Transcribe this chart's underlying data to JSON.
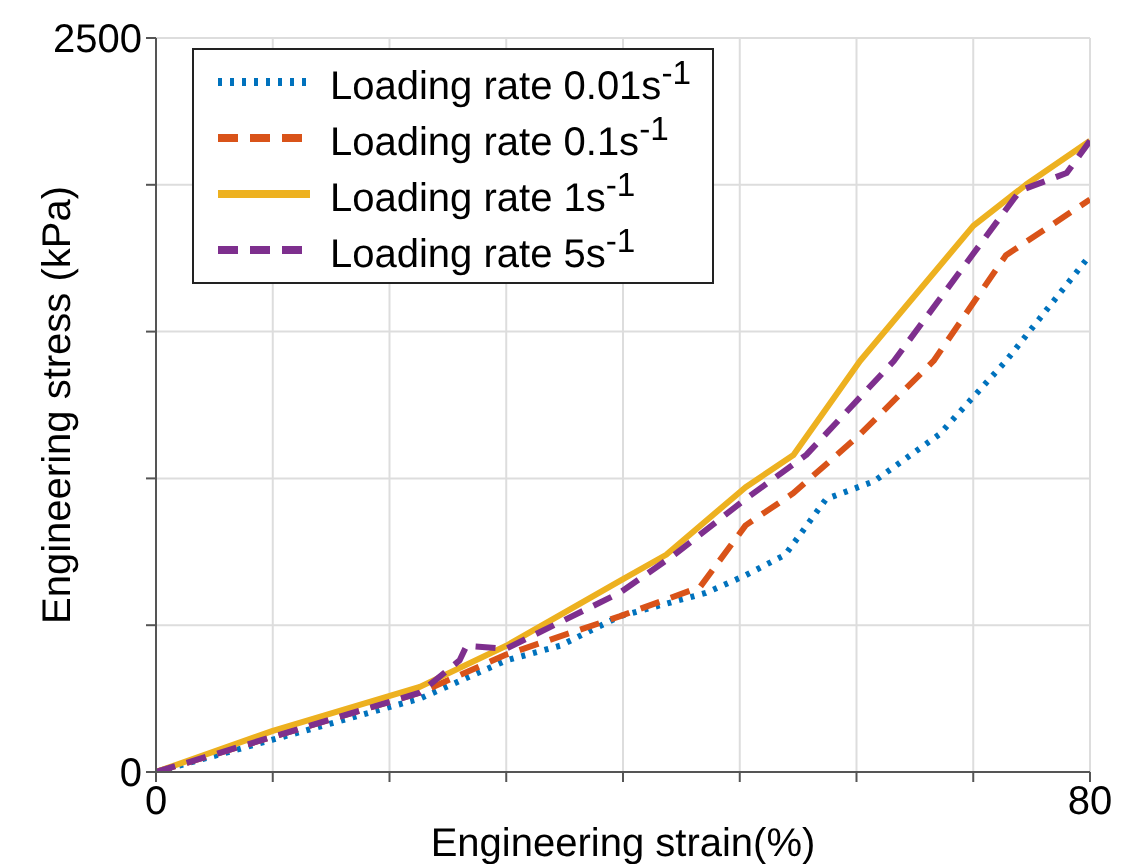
{
  "chart_data": {
    "type": "line",
    "xlabel": "Engineering strain(%)",
    "ylabel": "Engineering stress (kPa)",
    "xlim": [
      0,
      80
    ],
    "ylim": [
      0,
      2500
    ],
    "xticks": [
      0,
      {
        "value": 10,
        "label": null
      },
      {
        "value": 20,
        "label": null
      },
      {
        "value": 30,
        "label": null
      },
      {
        "value": 40,
        "label": null
      },
      {
        "value": 50,
        "label": null
      },
      {
        "value": 60,
        "label": null
      },
      {
        "value": 70,
        "label": null
      },
      80
    ],
    "yticks": [
      0,
      {
        "value": 500,
        "label": null
      },
      {
        "value": 1000,
        "label": null
      },
      {
        "value": 1500,
        "label": null
      },
      {
        "value": 2000,
        "label": null
      },
      2500
    ],
    "grid": true,
    "legend": "top left",
    "marker": "none",
    "series": [
      {
        "name": "Loading rate 0.01s$^{-1}$",
        "color": "#0072bd",
        "line_style": "dotted",
        "x": [
          0,
          10,
          22.6,
          30,
          34.6,
          39.7,
          47.1,
          50.5,
          53.9,
          57.4,
          61.5,
          67.1,
          72.8,
          80
        ],
        "values": [
          0,
          110,
          250,
          380,
          430,
          530,
          610,
          670,
          740,
          930,
          990,
          1150,
          1400,
          1760
        ]
      },
      {
        "name": "Loading rate 0.1s$^{-1}$",
        "color": "#d95319",
        "line_style": "dashed",
        "x": [
          0,
          10,
          22.6,
          30,
          39.7,
          46.6,
          50.5,
          54.6,
          60.3,
          66.6,
          72.8,
          80
        ],
        "values": [
          0,
          120,
          270,
          400,
          530,
          630,
          840,
          950,
          1150,
          1400,
          1760,
          1950
        ]
      },
      {
        "name": "Loading rate 1s$^{-1}$",
        "color": "#edb120",
        "line_style": "solid",
        "x": [
          0,
          10,
          22.6,
          30,
          39.7,
          43.7,
          50.5,
          54.6,
          60.3,
          70,
          74.5,
          80
        ],
        "values": [
          0,
          140,
          290,
          430,
          650,
          740,
          970,
          1080,
          1400,
          1860,
          2000,
          2150
        ]
      },
      {
        "name": "Loading rate 5s$^{-1}$",
        "color": "#7e2f8e",
        "line_style": "dashed",
        "x": [
          0,
          10,
          22.6,
          26,
          26.6,
          30,
          39.7,
          44.4,
          50.5,
          55.7,
          63.2,
          74,
          78,
          80
        ],
        "values": [
          0,
          120,
          270,
          380,
          430,
          420,
          610,
          740,
          930,
          1080,
          1400,
          1980,
          2040,
          2150
        ]
      }
    ]
  }
}
